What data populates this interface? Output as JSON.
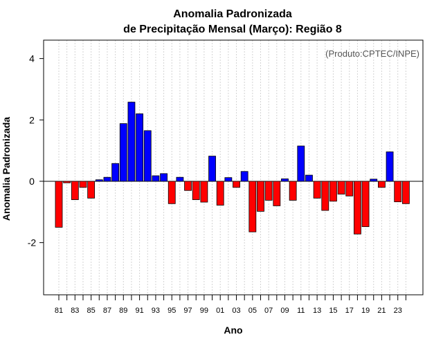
{
  "chart_data": {
    "type": "bar",
    "title_line1": "Anomalia Padronizada",
    "title_line2": "de Precipitação Mensal (Março): Região 8",
    "xlabel": "Ano",
    "ylabel": "Anomalia Padronizada",
    "credit": "(Produto:CPTEC/INPE)",
    "ylim": [
      -3.7,
      4.6
    ],
    "yticks": [
      "4",
      "2",
      "0",
      "-2"
    ],
    "ytick_values": [
      4,
      2,
      0,
      -2
    ],
    "xtick_labels": [
      "81",
      "83",
      "85",
      "87",
      "89",
      "91",
      "93",
      "95",
      "97",
      "99",
      "01",
      "03",
      "05",
      "07",
      "09",
      "11",
      "13",
      "15",
      "17",
      "19",
      "21",
      "23"
    ],
    "categories": [
      "1981",
      "1982",
      "1983",
      "1984",
      "1985",
      "1986",
      "1987",
      "1988",
      "1989",
      "1990",
      "1991",
      "1992",
      "1993",
      "1994",
      "1995",
      "1996",
      "1997",
      "1998",
      "1999",
      "2000",
      "2001",
      "2002",
      "2003",
      "2004",
      "2005",
      "2006",
      "2007",
      "2008",
      "2009",
      "2010",
      "2011",
      "2012",
      "2013",
      "2014",
      "2015",
      "2016",
      "2017",
      "2018",
      "2019",
      "2020",
      "2021",
      "2022",
      "2023",
      "2024"
    ],
    "values": [
      -1.5,
      -0.05,
      -0.6,
      -0.2,
      -0.55,
      0.05,
      0.13,
      0.58,
      1.88,
      2.58,
      2.2,
      1.65,
      0.18,
      0.25,
      -0.73,
      0.13,
      -0.3,
      -0.6,
      -0.68,
      0.82,
      -0.78,
      0.12,
      -0.2,
      0.32,
      -1.65,
      -0.98,
      -0.62,
      -0.8,
      0.08,
      -0.62,
      1.15,
      0.2,
      -0.55,
      -0.95,
      -0.65,
      -0.42,
      -0.48,
      -1.72,
      -1.48,
      0.07,
      -0.2,
      0.96,
      -0.67,
      -0.73
    ],
    "colors": {
      "positive": "#0000ff",
      "negative": "#ff0000",
      "grid": "#d3d3d3",
      "axis": "#000000"
    },
    "grid": true
  }
}
